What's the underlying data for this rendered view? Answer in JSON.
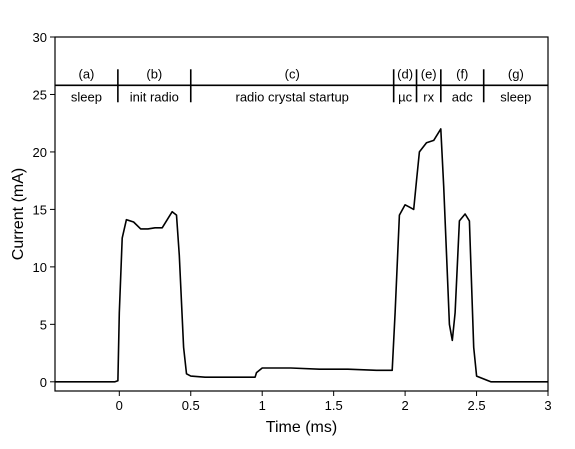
{
  "chart_data": {
    "type": "line",
    "title": "",
    "xlabel": "Time (ms)",
    "ylabel": "Current (mA)",
    "xlim": [
      -0.45,
      3.0
    ],
    "ylim": [
      -0.8,
      30
    ],
    "x_ticks": [
      0,
      0.5,
      1,
      1.5,
      2,
      2.5,
      3
    ],
    "x_tick_labels": [
      "0",
      "0.5",
      "1",
      "1.5",
      "2",
      "2.5",
      "3"
    ],
    "y_ticks": [
      0,
      5,
      10,
      15,
      20,
      25,
      30
    ],
    "y_tick_labels": [
      "0",
      "5",
      "10",
      "15",
      "20",
      "25",
      "30"
    ],
    "grid": false,
    "legend": "none",
    "phase_band_y": 25.8,
    "phase_boundaries": [
      -0.01,
      0.5,
      1.92,
      2.08,
      2.25,
      2.55
    ],
    "phases": [
      {
        "letter": "(a)",
        "name": "sleep",
        "x_start": -0.45,
        "x_end": -0.01
      },
      {
        "letter": "(b)",
        "name": "init radio",
        "x_start": -0.01,
        "x_end": 0.5
      },
      {
        "letter": "(c)",
        "name": "radio crystal startup",
        "x_start": 0.5,
        "x_end": 1.92
      },
      {
        "letter": "(d)",
        "name": "µc",
        "x_start": 1.92,
        "x_end": 2.08
      },
      {
        "letter": "(e)",
        "name": "rx",
        "x_start": 2.08,
        "x_end": 2.25
      },
      {
        "letter": "(f)",
        "name": "adc",
        "x_start": 2.25,
        "x_end": 2.55
      },
      {
        "letter": "(g)",
        "name": "sleep",
        "x_start": 2.55,
        "x_end": 3.0
      }
    ],
    "series": [
      {
        "color": "#000000",
        "x": [
          -0.45,
          -0.3,
          -0.15,
          -0.03,
          -0.01,
          0.0,
          0.02,
          0.05,
          0.1,
          0.15,
          0.2,
          0.25,
          0.3,
          0.35,
          0.37,
          0.4,
          0.42,
          0.45,
          0.47,
          0.5,
          0.6,
          0.8,
          0.95,
          0.96,
          1.0,
          1.2,
          1.4,
          1.6,
          1.8,
          1.91,
          1.93,
          1.96,
          2.0,
          2.03,
          2.06,
          2.08,
          2.1,
          2.15,
          2.2,
          2.25,
          2.27,
          2.3,
          2.31,
          2.33,
          2.35,
          2.38,
          2.42,
          2.45,
          2.48,
          2.5,
          2.6,
          2.8,
          3.0
        ],
        "y": [
          0.0,
          0.0,
          0.0,
          0.0,
          0.1,
          6.0,
          12.5,
          14.1,
          13.9,
          13.3,
          13.3,
          13.4,
          13.4,
          14.4,
          14.8,
          14.5,
          11.0,
          3.0,
          0.7,
          0.5,
          0.4,
          0.4,
          0.4,
          0.8,
          1.2,
          1.2,
          1.1,
          1.1,
          1.0,
          1.0,
          6.0,
          14.5,
          15.4,
          15.2,
          15.0,
          17.5,
          20.0,
          20.8,
          21.0,
          22.0,
          17.0,
          8.0,
          5.0,
          3.6,
          6.0,
          14.0,
          14.6,
          14.0,
          3.0,
          0.5,
          0.0,
          0.0,
          0.0
        ]
      }
    ]
  }
}
